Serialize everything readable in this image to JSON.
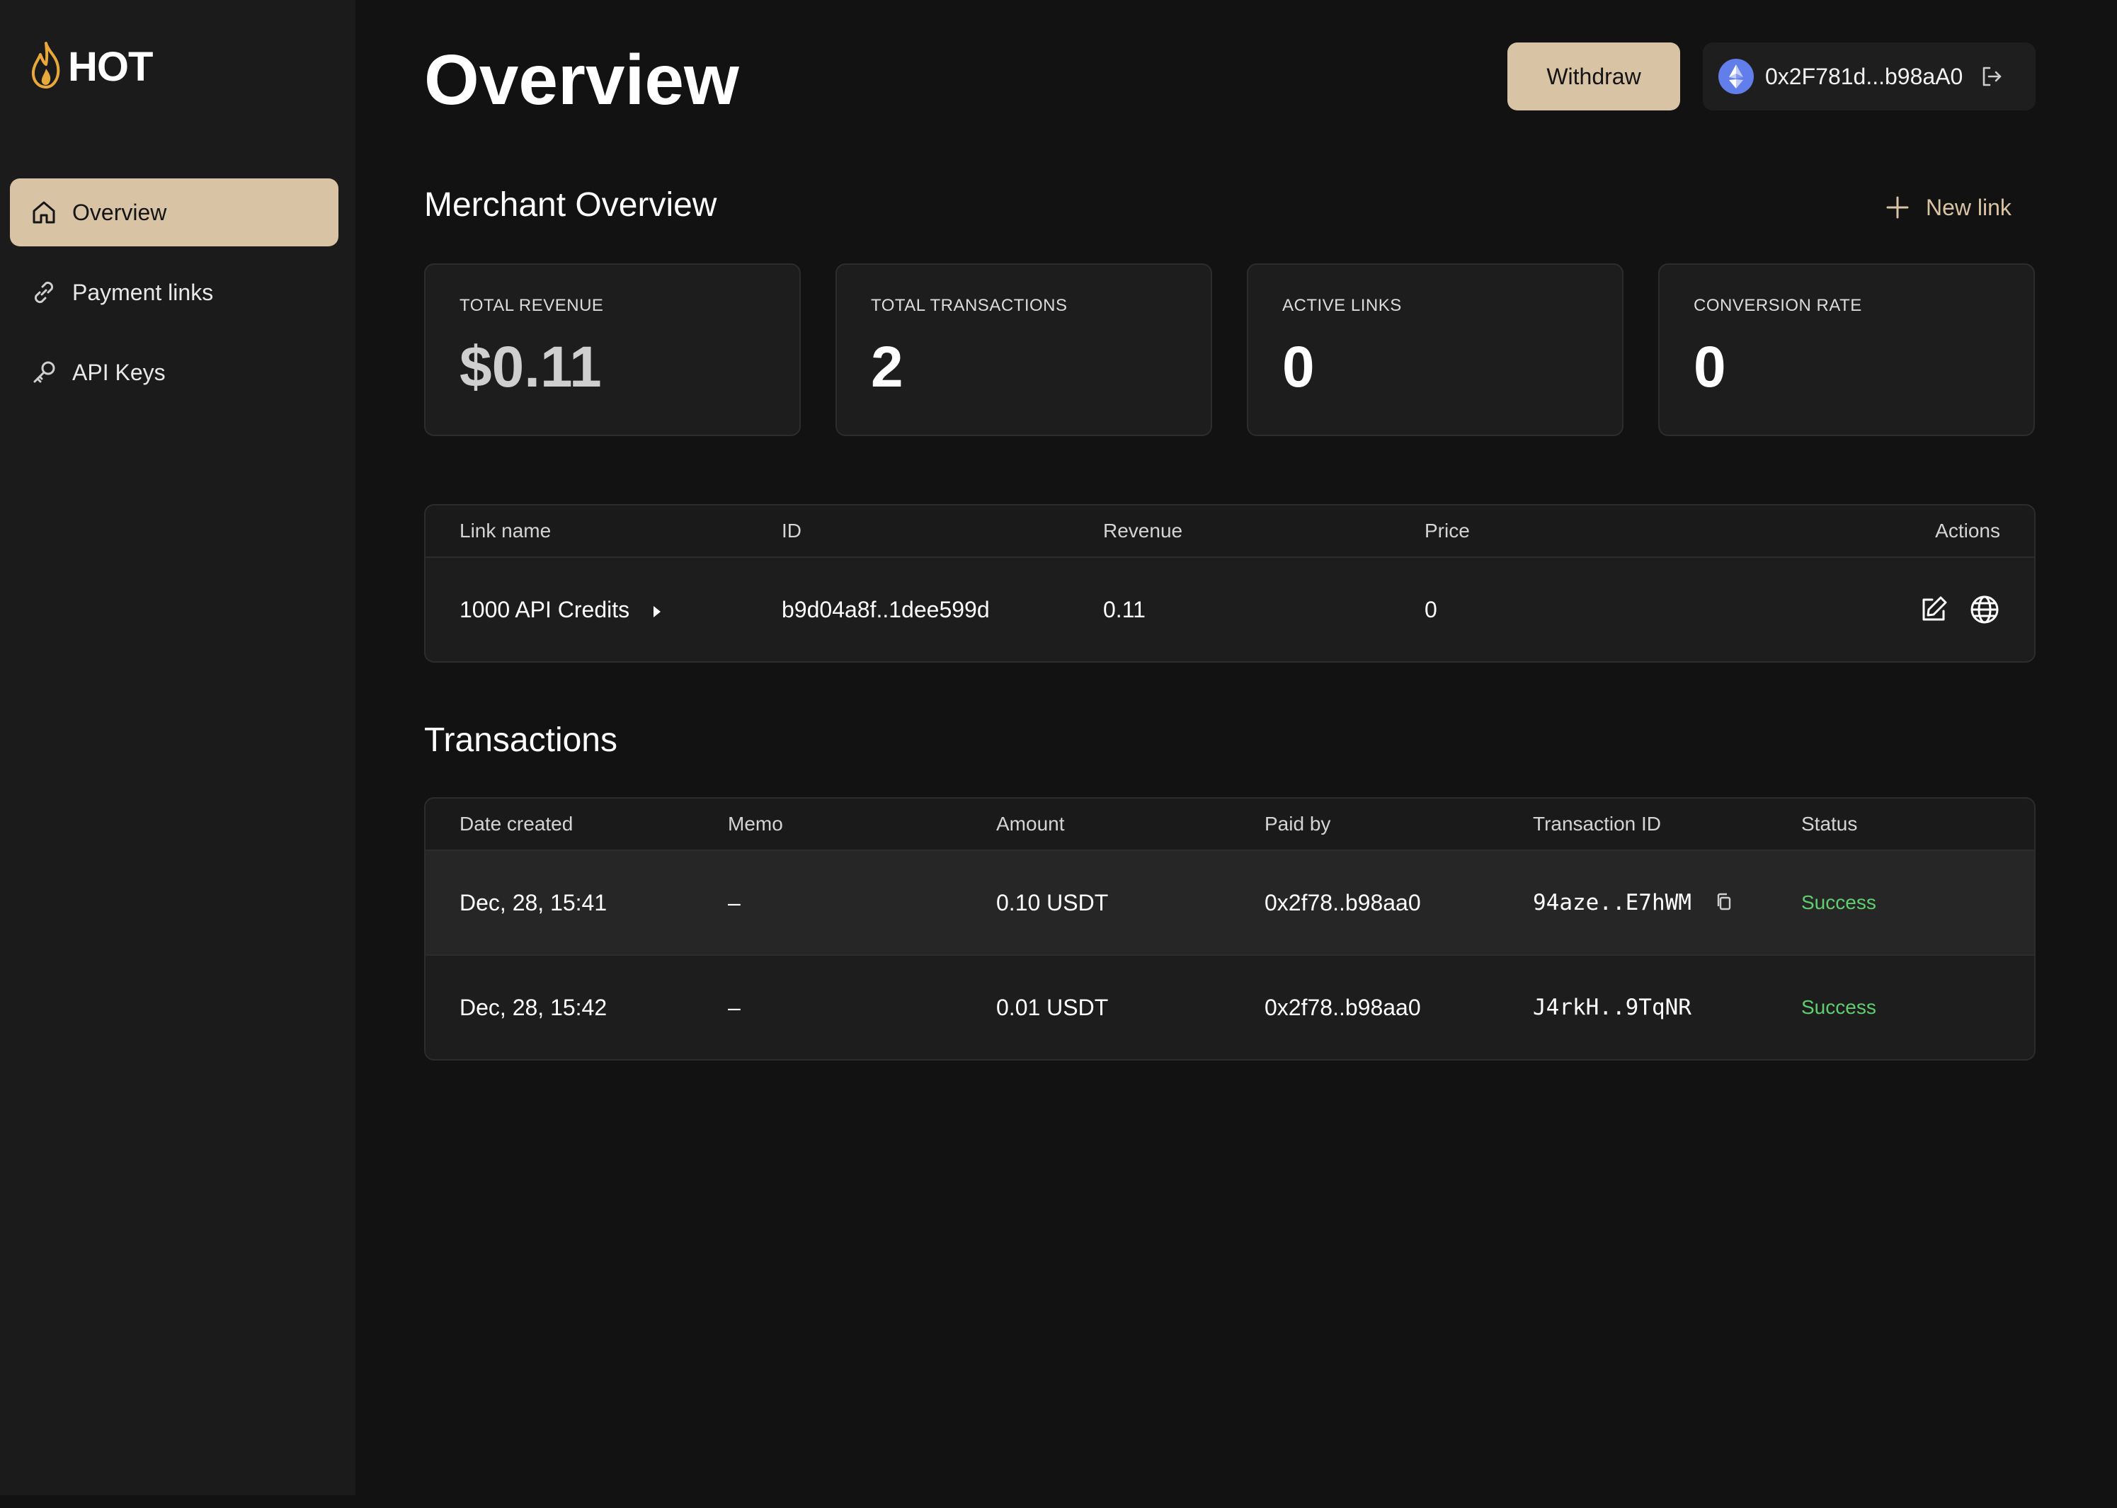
{
  "app": {
    "brand": "HOT",
    "icons": {
      "logo": "flame-icon"
    },
    "colors": {
      "accent": "#d9c3a5",
      "success": "#5fce6f",
      "background": "#121212",
      "sidebar": "#1b1b1b",
      "card": "#1d1d1d"
    }
  },
  "sidebar": {
    "items": [
      {
        "label": "Overview",
        "icon": "home-icon",
        "active": true
      },
      {
        "label": "Payment links",
        "icon": "link-icon",
        "active": false
      },
      {
        "label": "API Keys",
        "icon": "key-icon",
        "active": false
      }
    ]
  },
  "header": {
    "title": "Overview",
    "withdraw_label": "Withdraw",
    "wallet_address": "0x2F781d...b98aA0",
    "wallet_icon": "ethereum-icon",
    "logout_icon": "logout-icon"
  },
  "merchant": {
    "title": "Merchant Overview",
    "new_link_label": "New link",
    "stats": [
      {
        "label": "TOTAL REVENUE",
        "value": "$0.11"
      },
      {
        "label": "TOTAL TRANSACTIONS",
        "value": "2"
      },
      {
        "label": "ACTIVE LINKS",
        "value": "0"
      },
      {
        "label": "CONVERSION RATE",
        "value": "0"
      }
    ]
  },
  "links_table": {
    "columns": [
      "Link name",
      "ID",
      "Revenue",
      "Price",
      "Actions"
    ],
    "rows": [
      {
        "name": "1000 API Credits",
        "id": "b9d04a8f..1dee599d",
        "revenue": "0.11",
        "price": "0",
        "actions": [
          "edit-icon",
          "globe-icon"
        ]
      }
    ]
  },
  "transactions": {
    "title": "Transactions",
    "columns": [
      "Date created",
      "Memo",
      "Amount",
      "Paid by",
      "Transaction ID",
      "Status"
    ],
    "rows": [
      {
        "date": "Dec, 28, 15:41",
        "memo": "–",
        "amount": "0.10 USDT",
        "paid_by": "0x2f78..b98aa0",
        "tx_id": "94aze..E7hWM",
        "status": "Success",
        "copy_icon": true
      },
      {
        "date": "Dec, 28, 15:42",
        "memo": "–",
        "amount": "0.01 USDT",
        "paid_by": "0x2f78..b98aa0",
        "tx_id": "J4rkH..9TqNR",
        "status": "Success",
        "copy_icon": false
      }
    ]
  }
}
